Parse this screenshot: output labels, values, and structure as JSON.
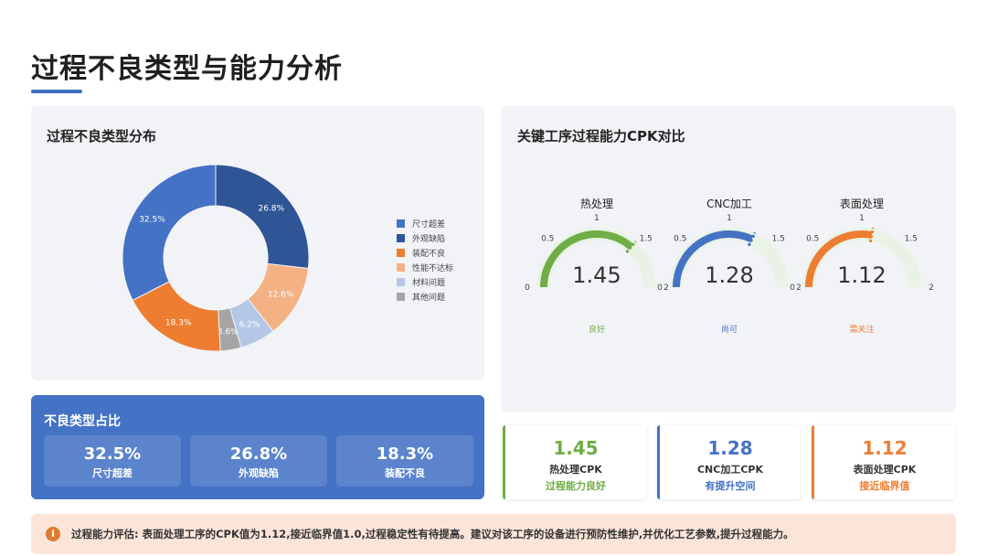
{
  "page": {
    "title": "过程不良类型与能力分析"
  },
  "donut_card": {
    "title": "过程不良类型分布"
  },
  "gauge_card": {
    "title": "关键工序过程能力CPK对比"
  },
  "chart_data": [
    {
      "type": "pie",
      "categories": [
        "尺寸超差",
        "外观缺陷",
        "装配不良",
        "性能不达标",
        "材料问题",
        "其他问题"
      ],
      "values": [
        32.5,
        26.8,
        18.3,
        12.6,
        6.2,
        3.6
      ],
      "labels": [
        "32.5%",
        "26.8%",
        "18.3%",
        "12.6%",
        "6.2%",
        "3.6%"
      ],
      "colors": [
        "#4472c4",
        "#2f5597",
        "#ed7d31",
        "#f4b183",
        "#b4c7e7",
        "#a5a5a5"
      ],
      "legend": "right",
      "draw_order": [
        1,
        3,
        4,
        5,
        2,
        0
      ]
    },
    {
      "type": "gauge",
      "gauges": [
        {
          "title": "热处理",
          "value": 1.45,
          "value_text": "1.45",
          "status": "良好",
          "color": "#70ad47",
          "min": 0,
          "max": 2
        },
        {
          "title": "CNC加工",
          "value": 1.28,
          "value_text": "1.28",
          "status": "尚可",
          "color": "#4472c4",
          "min": 0,
          "max": 2
        },
        {
          "title": "表面处理",
          "value": 1.12,
          "value_text": "1.12",
          "status": "需关注",
          "color": "#ed7d31",
          "min": 0,
          "max": 2
        }
      ],
      "tick_labels": [
        "0",
        "0.5",
        "1",
        "1.5",
        "2"
      ]
    }
  ],
  "ratio_card": {
    "title": "不良类型占比",
    "items": [
      {
        "value": "32.5%",
        "label": "尺寸超差"
      },
      {
        "value": "26.8%",
        "label": "外观缺陷"
      },
      {
        "value": "18.3%",
        "label": "装配不良"
      }
    ]
  },
  "cpk_cards": [
    {
      "value": "1.45",
      "label": "热处理CPK",
      "status": "过程能力良好",
      "color": "#70ad47"
    },
    {
      "value": "1.28",
      "label": "CNC加工CPK",
      "status": "有提升空间",
      "color": "#4472c4"
    },
    {
      "value": "1.12",
      "label": "表面处理CPK",
      "status": "接近临界值",
      "color": "#ed7d31"
    }
  ],
  "note": {
    "icon": "info-icon",
    "icon_glyph": "i",
    "text": "过程能力评估: 表面处理工序的CPK值为1.12,接近临界值1.0,过程稳定性有待提高。建议对该工序的设备进行预防性维护,并优化工艺参数,提升过程能力。"
  }
}
